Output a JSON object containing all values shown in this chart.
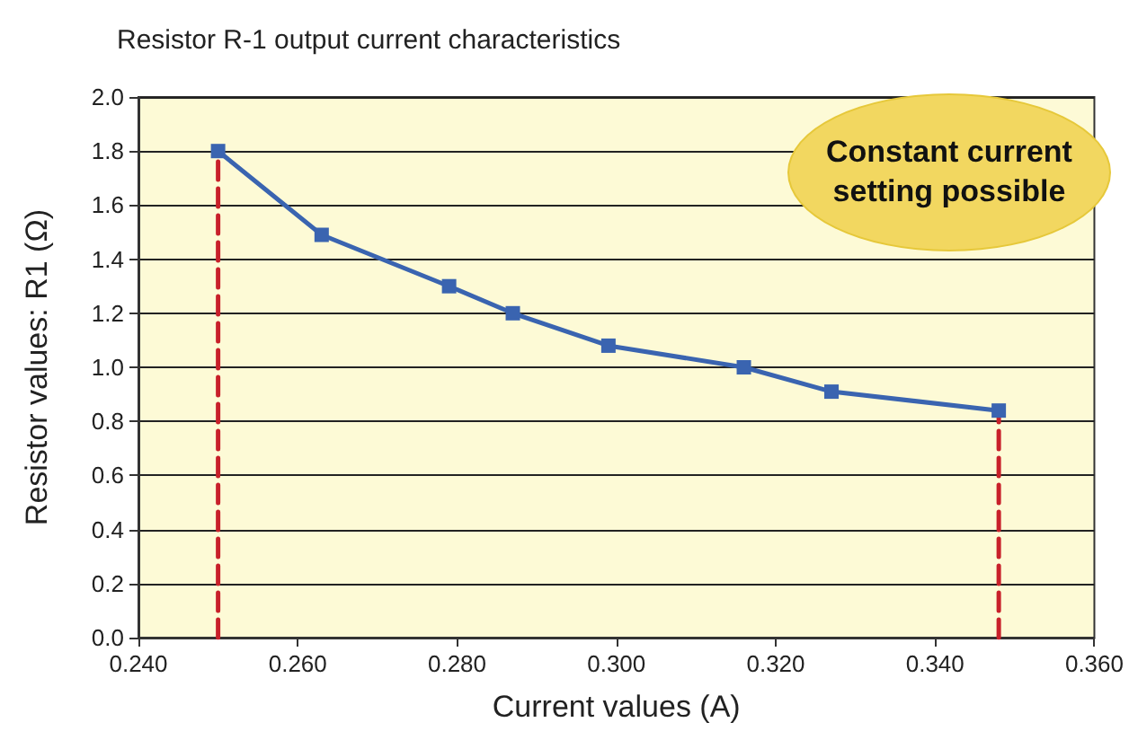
{
  "chart_data": {
    "type": "line",
    "title": "Resistor R-1 output current characteristics",
    "xlabel": "Current values (A)",
    "ylabel": "Resistor values: R1 (Ω)",
    "annotations": [
      "Constant current setting possible"
    ],
    "series": [
      {
        "color": "#3a64b0",
        "marker": "square",
        "line_style": "solid",
        "x": [
          0.25,
          0.263,
          0.279,
          0.287,
          0.299,
          0.316,
          0.327,
          0.348
        ],
        "values": [
          1.8,
          1.49,
          1.3,
          1.2,
          1.08,
          1.0,
          0.91,
          0.84
        ]
      },
      {
        "color": "#c8202a",
        "marker": "none",
        "line_style": "dashed",
        "x": [
          0.25,
          0.25
        ],
        "values": [
          0,
          1.8
        ]
      },
      {
        "color": "#c8202a",
        "marker": "none",
        "line_style": "dashed",
        "x": [
          0.348,
          0.348
        ],
        "values": [
          0,
          0.84
        ]
      }
    ],
    "xlim": [
      0.24,
      0.36
    ],
    "xticks": [
      {
        "value": 0.24,
        "label": "0.240"
      },
      {
        "value": 0.26,
        "label": "0.260"
      },
      {
        "value": 0.28,
        "label": "0.280"
      },
      {
        "value": 0.3,
        "label": "0.300"
      },
      {
        "value": 0.32,
        "label": "0.320"
      },
      {
        "value": 0.34,
        "label": "0.340"
      },
      {
        "value": 0.36,
        "label": "0.360"
      }
    ],
    "ylim": [
      0,
      2
    ],
    "yticks": [
      {
        "value": 0,
        "label": "0.0"
      },
      {
        "value": 0.2,
        "label": "0.2"
      },
      {
        "value": 0.4,
        "label": "0.4"
      },
      {
        "value": 0.6,
        "label": "0.6"
      },
      {
        "value": 0.8,
        "label": "0.8"
      },
      {
        "value": 1,
        "label": "1.0"
      },
      {
        "value": 1.2,
        "label": "1.2"
      },
      {
        "value": 1.4,
        "label": "1.4"
      },
      {
        "value": 1.6,
        "label": "1.6"
      },
      {
        "value": 1.8,
        "label": "1.8"
      },
      {
        "value": 2,
        "label": "2.0"
      }
    ],
    "grid": "y"
  }
}
